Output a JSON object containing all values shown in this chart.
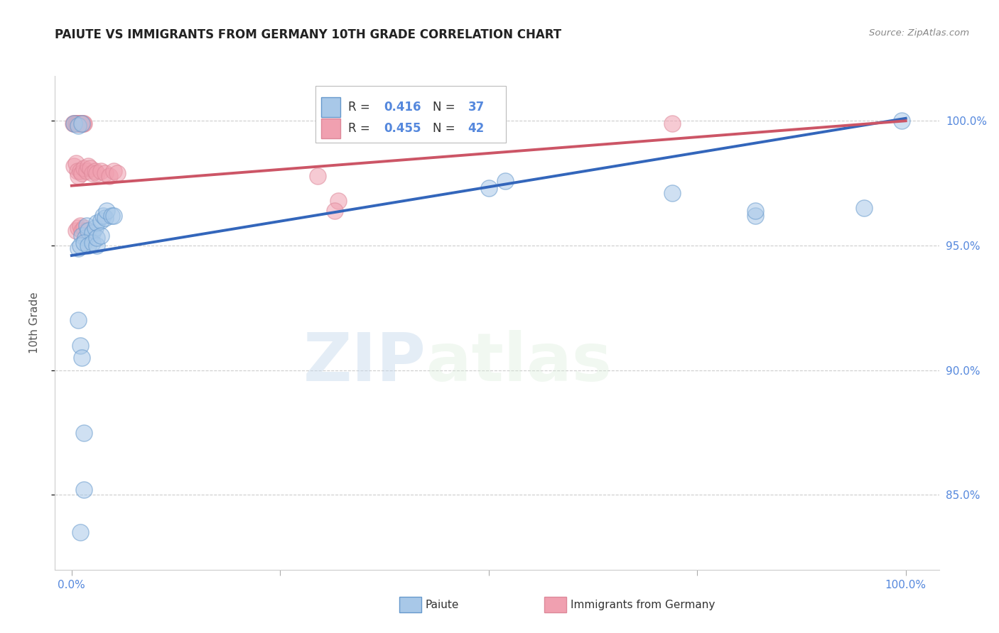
{
  "title": "PAIUTE VS IMMIGRANTS FROM GERMANY 10TH GRADE CORRELATION CHART",
  "source": "Source: ZipAtlas.com",
  "ylabel": "10th Grade",
  "watermark_zip": "ZIP",
  "watermark_atlas": "atlas",
  "blue_R": 0.416,
  "blue_N": 37,
  "pink_R": 0.455,
  "pink_N": 42,
  "blue_label": "Paiute",
  "pink_label": "Immigrants from Germany",
  "blue_color": "#a8c8e8",
  "pink_color": "#f0a0b0",
  "blue_edge_color": "#6699cc",
  "pink_edge_color": "#dd8899",
  "blue_line_color": "#3366bb",
  "pink_line_color": "#cc5566",
  "background_color": "#ffffff",
  "grid_color": "#cccccc",
  "blue_scatter": [
    [
      0.003,
      0.999
    ],
    [
      0.995,
      1.0
    ],
    [
      0.008,
      0.998
    ],
    [
      0.012,
      0.999
    ],
    [
      0.5,
      0.973
    ],
    [
      0.52,
      0.976
    ],
    [
      0.72,
      0.971
    ],
    [
      0.82,
      0.962
    ],
    [
      0.82,
      0.964
    ],
    [
      0.95,
      0.965
    ],
    [
      0.012,
      0.954
    ],
    [
      0.016,
      0.953
    ],
    [
      0.018,
      0.958
    ],
    [
      0.02,
      0.956
    ],
    [
      0.025,
      0.955
    ],
    [
      0.028,
      0.957
    ],
    [
      0.03,
      0.959
    ],
    [
      0.035,
      0.96
    ],
    [
      0.038,
      0.962
    ],
    [
      0.04,
      0.961
    ],
    [
      0.042,
      0.964
    ],
    [
      0.048,
      0.962
    ],
    [
      0.05,
      0.962
    ],
    [
      0.008,
      0.949
    ],
    [
      0.01,
      0.95
    ],
    [
      0.015,
      0.951
    ],
    [
      0.02,
      0.95
    ],
    [
      0.025,
      0.951
    ],
    [
      0.03,
      0.95
    ],
    [
      0.03,
      0.953
    ],
    [
      0.035,
      0.954
    ],
    [
      0.008,
      0.92
    ],
    [
      0.01,
      0.91
    ],
    [
      0.012,
      0.905
    ],
    [
      0.015,
      0.875
    ],
    [
      0.01,
      0.835
    ],
    [
      0.015,
      0.852
    ]
  ],
  "pink_scatter": [
    [
      0.002,
      0.999
    ],
    [
      0.003,
      0.999
    ],
    [
      0.004,
      0.999
    ],
    [
      0.005,
      0.999
    ],
    [
      0.006,
      0.999
    ],
    [
      0.007,
      0.999
    ],
    [
      0.008,
      0.999
    ],
    [
      0.009,
      0.999
    ],
    [
      0.01,
      0.999
    ],
    [
      0.011,
      0.999
    ],
    [
      0.012,
      0.999
    ],
    [
      0.013,
      0.999
    ],
    [
      0.014,
      0.999
    ],
    [
      0.015,
      0.999
    ],
    [
      0.003,
      0.982
    ],
    [
      0.005,
      0.983
    ],
    [
      0.007,
      0.98
    ],
    [
      0.008,
      0.978
    ],
    [
      0.01,
      0.98
    ],
    [
      0.012,
      0.979
    ],
    [
      0.015,
      0.981
    ],
    [
      0.018,
      0.98
    ],
    [
      0.02,
      0.982
    ],
    [
      0.022,
      0.981
    ],
    [
      0.025,
      0.979
    ],
    [
      0.028,
      0.98
    ],
    [
      0.03,
      0.979
    ],
    [
      0.035,
      0.98
    ],
    [
      0.04,
      0.979
    ],
    [
      0.045,
      0.978
    ],
    [
      0.05,
      0.98
    ],
    [
      0.055,
      0.979
    ],
    [
      0.295,
      0.978
    ],
    [
      0.005,
      0.956
    ],
    [
      0.008,
      0.957
    ],
    [
      0.01,
      0.958
    ],
    [
      0.012,
      0.956
    ],
    [
      0.015,
      0.957
    ],
    [
      0.018,
      0.956
    ],
    [
      0.32,
      0.968
    ],
    [
      0.315,
      0.964
    ],
    [
      0.72,
      0.999
    ]
  ],
  "blue_trend_x": [
    0.0,
    1.0
  ],
  "blue_trend_y": [
    0.946,
    1.001
  ],
  "pink_trend_x": [
    0.0,
    1.0
  ],
  "pink_trend_y": [
    0.974,
    1.0
  ],
  "yticks": [
    0.85,
    0.9,
    0.95,
    1.0
  ],
  "ytick_labels": [
    "85.0%",
    "90.0%",
    "95.0%",
    "100.0%"
  ],
  "xlim": [
    -0.02,
    1.04
  ],
  "ylim": [
    0.82,
    1.018
  ],
  "right_tick_color": "#5588dd",
  "title_fontsize": 12,
  "tick_fontsize": 11
}
